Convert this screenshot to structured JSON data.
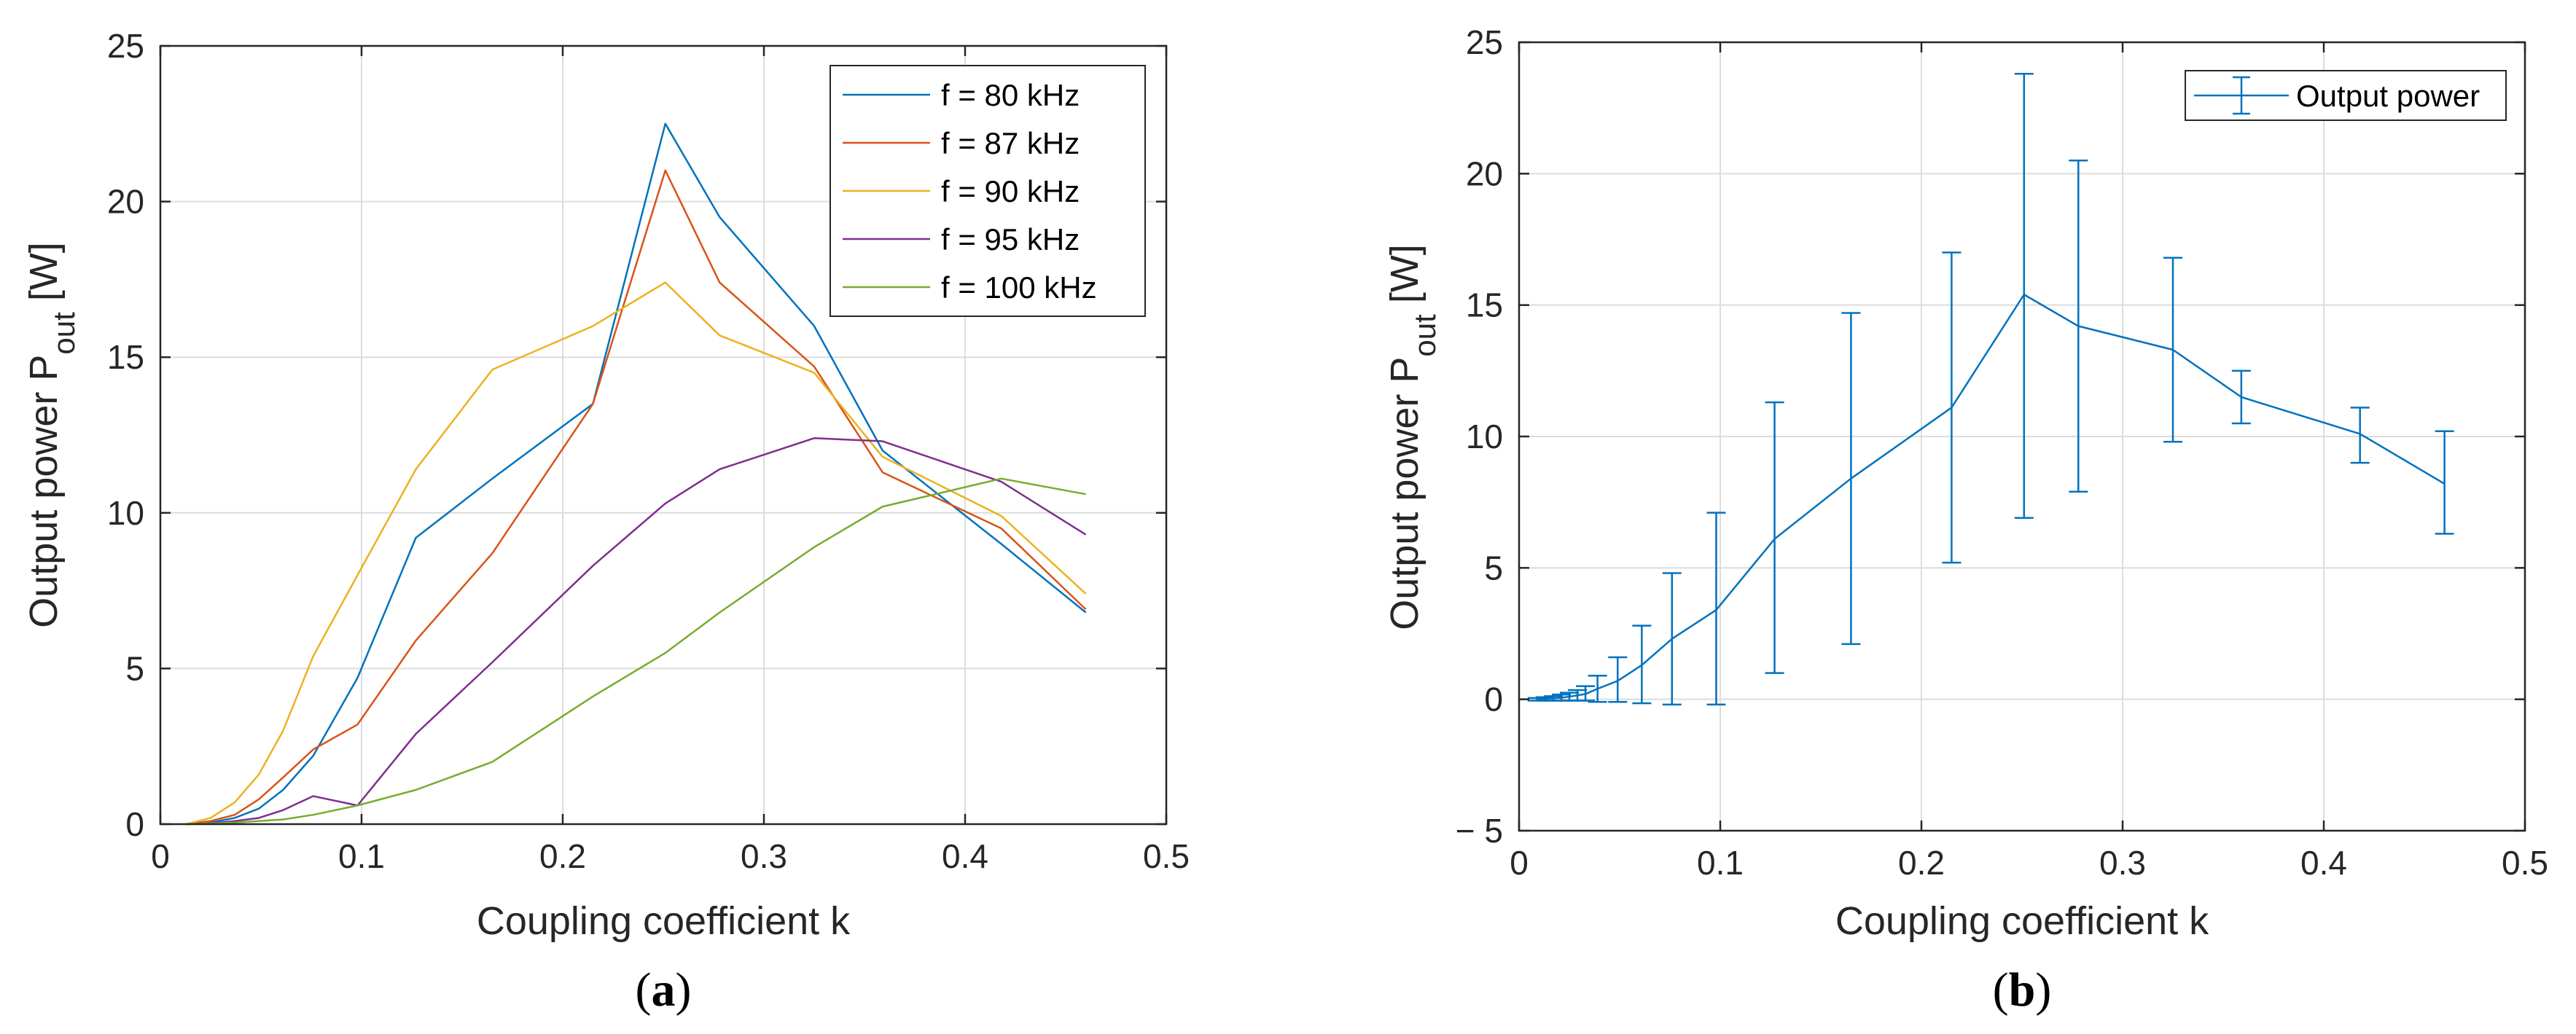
{
  "chart_data": [
    {
      "type": "line",
      "caption": {
        "open": "(",
        "letter": "a",
        "close": ")"
      },
      "title": "",
      "xlabel": "Coupling coefficient k",
      "ylabel": {
        "main": "Output power P",
        "sub": "out",
        "unit": " [W]"
      },
      "xlim": [
        0,
        0.5
      ],
      "ylim": [
        0,
        25
      ],
      "xticks": [
        "0",
        "0.1",
        "0.2",
        "0.3",
        "0.4",
        "0.5"
      ],
      "yticks": [
        "0",
        "5",
        "10",
        "15",
        "20",
        "25"
      ],
      "grid": true,
      "legend_position": "top-right",
      "x": [
        0.013,
        0.025,
        0.037,
        0.049,
        0.061,
        0.076,
        0.098,
        0.127,
        0.165,
        0.215,
        0.251,
        0.278,
        0.325,
        0.359,
        0.418,
        0.46
      ],
      "series": [
        {
          "name": "f =  80 kHz",
          "color": "#0072BD",
          "values": [
            0,
            0.05,
            0.2,
            0.5,
            1.1,
            2.2,
            4.7,
            9.2,
            11.1,
            13.5,
            22.5,
            19.5,
            16.0,
            12.0,
            9.0,
            6.8
          ]
        },
        {
          "name": "f =  87 kHz",
          "color": "#D95319",
          "values": [
            0,
            0.1,
            0.3,
            0.8,
            1.5,
            2.4,
            3.2,
            5.9,
            8.7,
            13.5,
            21.0,
            17.4,
            14.7,
            11.3,
            9.5,
            6.9
          ]
        },
        {
          "name": "f =  90 kHz",
          "color": "#EDB120",
          "values": [
            0,
            0.2,
            0.7,
            1.6,
            3.0,
            5.4,
            8.0,
            11.4,
            14.6,
            16.0,
            17.4,
            15.7,
            14.5,
            11.8,
            9.9,
            7.4
          ]
        },
        {
          "name": "f =  95 kHz",
          "color": "#7E2F8E",
          "values": [
            0,
            0.02,
            0.1,
            0.2,
            0.45,
            0.9,
            0.6,
            2.9,
            5.2,
            8.3,
            10.3,
            11.4,
            12.4,
            12.3,
            11.0,
            9.3
          ]
        },
        {
          "name": "f =  100 kHz",
          "color": "#77AC30",
          "values": [
            0,
            0.02,
            0.05,
            0.1,
            0.15,
            0.3,
            0.6,
            1.1,
            2.0,
            4.1,
            5.5,
            6.8,
            8.9,
            10.2,
            11.1,
            10.6
          ]
        }
      ]
    },
    {
      "type": "line",
      "caption": {
        "open": "(",
        "letter": "b",
        "close": ")"
      },
      "title": "",
      "xlabel": "Coupling coefficient k",
      "ylabel": {
        "main": "Output power P",
        "sub": "out",
        "unit": " [W]"
      },
      "xlim": [
        0,
        0.5
      ],
      "ylim": [
        -5,
        25
      ],
      "xticks": [
        "0",
        "0.1",
        "0.2",
        "0.3",
        "0.4",
        "0.5"
      ],
      "yticks": [
        "− 5",
        "0",
        "5",
        "10",
        "15",
        "20",
        "25"
      ],
      "grid": true,
      "legend_position": "top-right",
      "series": [
        {
          "name": "Output power",
          "color": "#0072BD",
          "errorbars": true,
          "x": [
            0.009,
            0.013,
            0.017,
            0.021,
            0.025,
            0.029,
            0.033,
            0.039,
            0.049,
            0.061,
            0.076,
            0.098,
            0.127,
            0.165,
            0.215,
            0.251,
            0.278,
            0.325,
            0.359,
            0.418,
            0.46
          ],
          "values": [
            0,
            0.02,
            0.04,
            0.06,
            0.1,
            0.15,
            0.2,
            0.4,
            0.7,
            1.3,
            2.3,
            3.4,
            6.1,
            8.4,
            11.1,
            15.4,
            14.2,
            13.3,
            11.5,
            10.1,
            8.2
          ],
          "lower": [
            -0.05,
            -0.05,
            -0.05,
            -0.05,
            -0.05,
            -0.05,
            -0.05,
            -0.1,
            -0.1,
            -0.15,
            -0.2,
            -0.2,
            1.0,
            2.1,
            5.2,
            6.9,
            7.9,
            9.8,
            10.5,
            9.0,
            6.3
          ],
          "upper": [
            0.05,
            0.08,
            0.12,
            0.18,
            0.25,
            0.35,
            0.5,
            0.9,
            1.6,
            2.8,
            4.8,
            7.1,
            11.3,
            14.7,
            17.0,
            23.8,
            20.5,
            16.8,
            12.5,
            11.1,
            10.2
          ]
        }
      ]
    }
  ]
}
